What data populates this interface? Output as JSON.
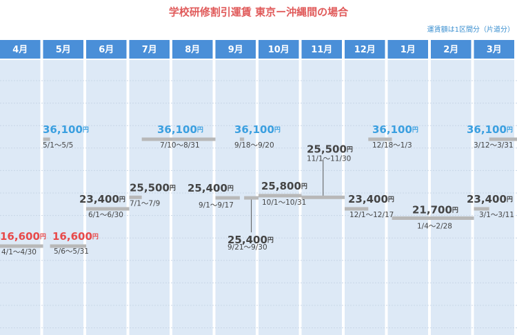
{
  "chart_data": {
    "type": "fare-calendar",
    "title": "学校研修割引運賃 東京ー沖縄間の場合",
    "note": "運賃額は1区間分（片道分）",
    "unit": "円",
    "categories": [
      "4月",
      "5月",
      "6月",
      "7月",
      "8月",
      "9月",
      "10月",
      "11月",
      "12月",
      "1月",
      "2月",
      "3月"
    ],
    "fares": [
      {
        "value": 16600,
        "label": "16,600",
        "period": "4/1～4/30",
        "color": "#e84a4a"
      },
      {
        "value": 36100,
        "label": "36,100",
        "period": "5/1～5/5",
        "color": "#3a9fe0"
      },
      {
        "value": 16600,
        "label": "16,600",
        "period": "5/6～5/31",
        "color": "#e84a4a"
      },
      {
        "value": 23400,
        "label": "23,400",
        "period": "6/1～6/30",
        "color": "#444444"
      },
      {
        "value": 25500,
        "label": "25,500",
        "period": "7/1～7/9",
        "color": "#444444"
      },
      {
        "value": 36100,
        "label": "36,100",
        "period": "7/10～8/31",
        "color": "#3a9fe0"
      },
      {
        "value": 25400,
        "label": "25,400",
        "period": "9/1～9/17",
        "color": "#444444"
      },
      {
        "value": 36100,
        "label": "36,100",
        "period": "9/18～9/20",
        "color": "#3a9fe0"
      },
      {
        "value": 25400,
        "label": "25,400",
        "period": "9/21～9/30",
        "color": "#444444"
      },
      {
        "value": 25800,
        "label": "25,800",
        "period": "10/1～10/31",
        "color": "#444444"
      },
      {
        "value": 25500,
        "label": "25,500",
        "period": "11/1～11/30",
        "color": "#444444"
      },
      {
        "value": 23400,
        "label": "23,400",
        "period": "12/1～12/17",
        "color": "#444444"
      },
      {
        "value": 36100,
        "label": "36,100",
        "period": "12/18～1/3",
        "color": "#3a9fe0"
      },
      {
        "value": 21700,
        "label": "21,700",
        "period": "1/4～2/28",
        "color": "#444444"
      },
      {
        "value": 23400,
        "label": "23,400",
        "period": "3/1～3/11",
        "color": "#444444"
      },
      {
        "value": 36100,
        "label": "36,100",
        "period": "3/12～3/31",
        "color": "#3a9fe0"
      }
    ]
  }
}
